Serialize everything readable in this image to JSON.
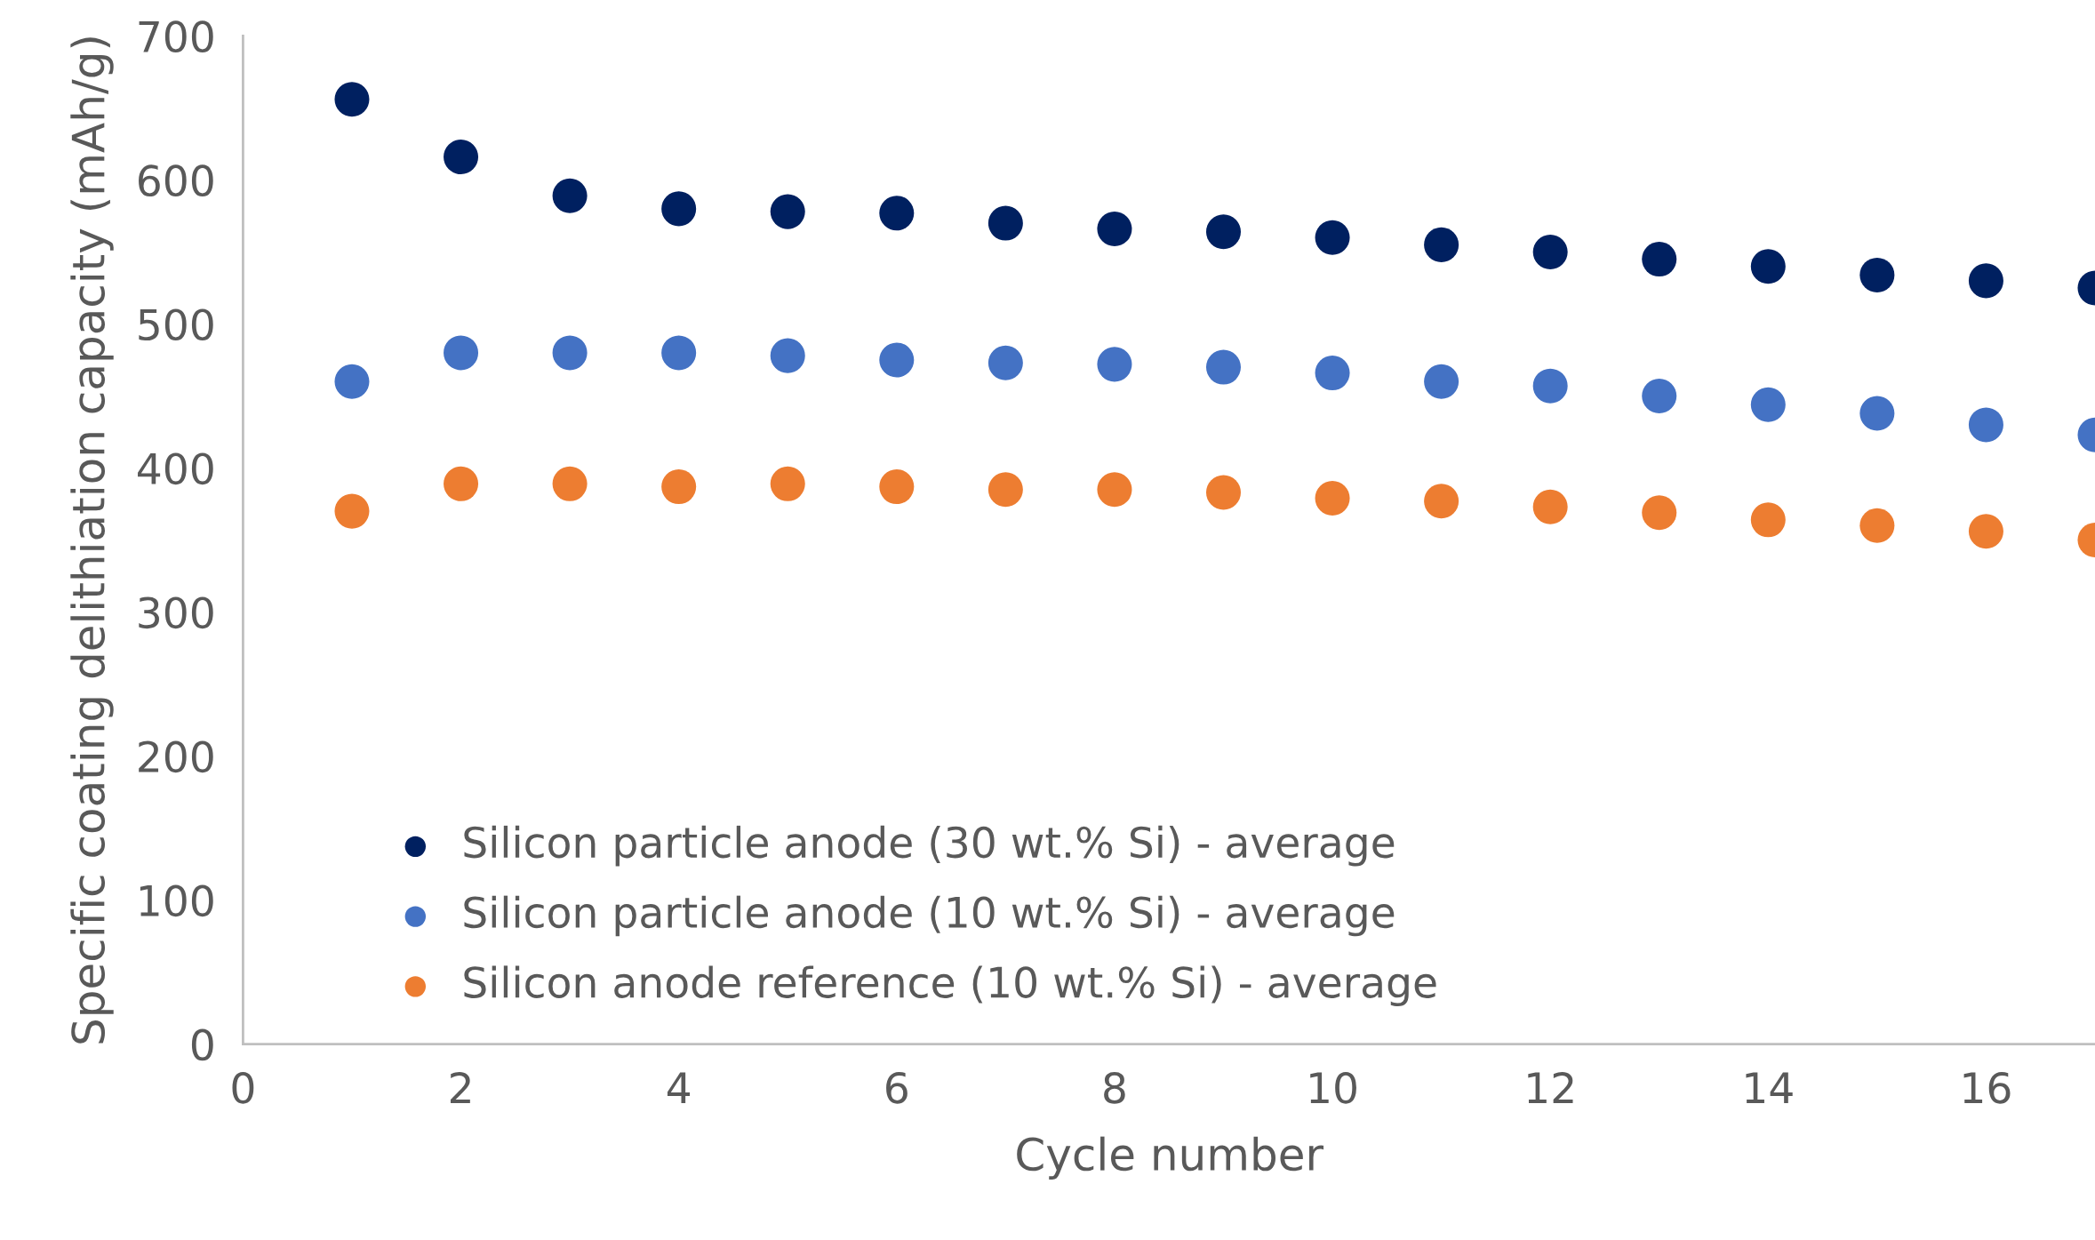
{
  "chart_data": {
    "type": "scatter",
    "xlabel": "Cycle number",
    "ylabel": "Specific coating delithiation capacity (mAh/g)",
    "x": [
      1,
      2,
      3,
      4,
      5,
      6,
      7,
      8,
      9,
      10,
      11,
      12,
      13,
      14,
      15,
      16,
      17
    ],
    "series": [
      {
        "name": "Silicon particle anode (30 wt.% Si) - average",
        "color": "#002060",
        "values": [
          656,
          616,
          589,
          580,
          578,
          577,
          570,
          566,
          564,
          560,
          555,
          550,
          545,
          540,
          534,
          530,
          525
        ]
      },
      {
        "name": "Silicon particle anode (10 wt.% Si) - average",
        "color": "#4472c4",
        "values": [
          460,
          480,
          480,
          480,
          478,
          475,
          473,
          472,
          470,
          466,
          460,
          457,
          450,
          444,
          438,
          430,
          423
        ]
      },
      {
        "name": "Silicon anode reference (10 wt.% Si) - average",
        "color": "#ed7d31",
        "values": [
          370,
          389,
          389,
          387,
          389,
          387,
          385,
          385,
          383,
          379,
          377,
          373,
          369,
          364,
          360,
          356,
          350
        ]
      }
    ],
    "xlim": [
      0,
      17
    ],
    "xticks": [
      0,
      2,
      4,
      6,
      8,
      10,
      12,
      14,
      16
    ],
    "ylim": [
      0,
      700
    ],
    "yticks": [
      0,
      100,
      200,
      300,
      400,
      500,
      600,
      700
    ],
    "grid": false,
    "legend": "bottom left",
    "marker": "circle"
  }
}
